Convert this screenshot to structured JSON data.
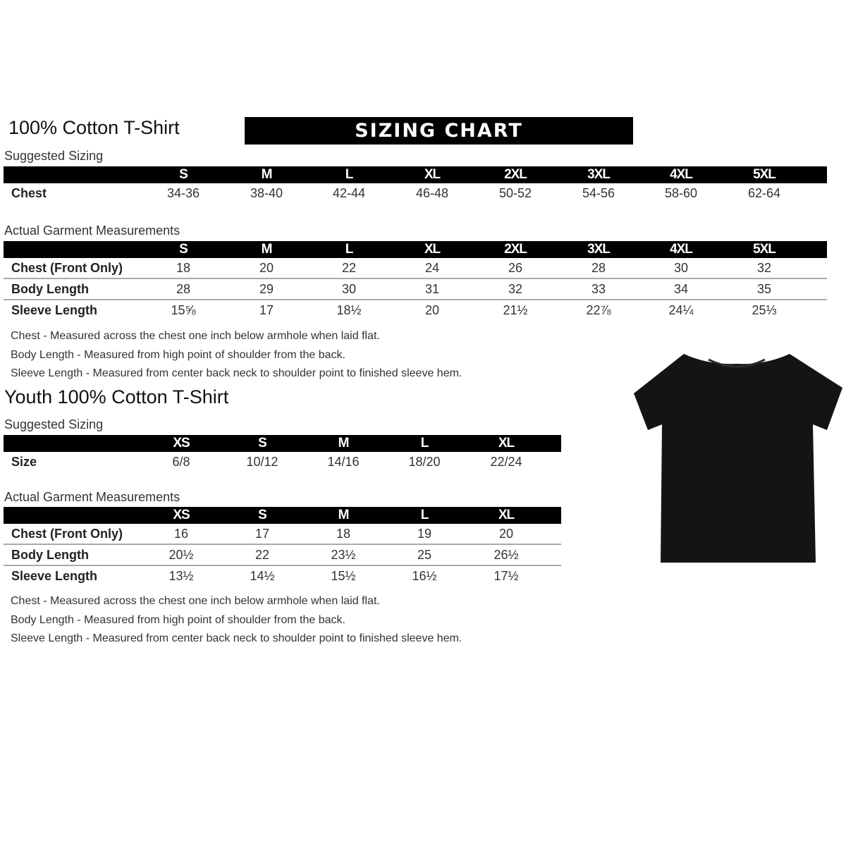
{
  "banner": "SIZING CHART",
  "adult": {
    "title": "100% Cotton T-Shirt",
    "suggested_label": "Suggested Sizing",
    "sizes": [
      "S",
      "M",
      "L",
      "XL",
      "2XL",
      "3XL",
      "4XL",
      "5XL"
    ],
    "suggested_rows": [
      {
        "label": "Chest",
        "values": [
          "34-36",
          "38-40",
          "42-44",
          "46-48",
          "50-52",
          "54-56",
          "58-60",
          "62-64"
        ]
      }
    ],
    "actual_label": "Actual Garment Measurements",
    "actual_rows": [
      {
        "label": "Chest (Front Only)",
        "values": [
          "18",
          "20",
          "22",
          "24",
          "26",
          "28",
          "30",
          "32"
        ]
      },
      {
        "label": "Body Length",
        "values": [
          "28",
          "29",
          "30",
          "31",
          "32",
          "33",
          "34",
          "35"
        ]
      },
      {
        "label": "Sleeve Length",
        "values": [
          "15⅝",
          "17",
          "18½",
          "20",
          "21½",
          "22⅞",
          "24¼",
          "25⅓"
        ]
      }
    ],
    "notes": [
      "Chest - Measured across the chest one inch below armhole when laid flat.",
      "Body Length - Measured from high point of shoulder from the back.",
      "Sleeve Length - Measured from center back neck to shoulder point to finished sleeve hem."
    ]
  },
  "youth": {
    "title": "Youth 100% Cotton T-Shirt",
    "suggested_label": "Suggested Sizing",
    "sizes": [
      "XS",
      "S",
      "M",
      "L",
      "XL"
    ],
    "suggested_rows": [
      {
        "label": "Size",
        "values": [
          "6/8",
          "10/12",
          "14/16",
          "18/20",
          "22/24"
        ]
      }
    ],
    "actual_label": "Actual Garment Measurements",
    "actual_rows": [
      {
        "label": "Chest (Front Only)",
        "values": [
          "16",
          "17",
          "18",
          "19",
          "20"
        ]
      },
      {
        "label": "Body Length",
        "values": [
          "20½",
          "22",
          "23½",
          "25",
          "26½"
        ]
      },
      {
        "label": "Sleeve Length",
        "values": [
          "13½",
          "14½",
          "15½",
          "16½",
          "17½"
        ]
      }
    ],
    "notes": [
      "Chest - Measured across the chest one inch below armhole when laid flat.",
      "Body Length - Measured from high point of shoulder from the back.",
      "Sleeve Length - Measured from center back neck to shoulder point to finished sleeve hem."
    ]
  },
  "colors": {
    "header_bg": "#000000",
    "tshirt": "#141414"
  }
}
